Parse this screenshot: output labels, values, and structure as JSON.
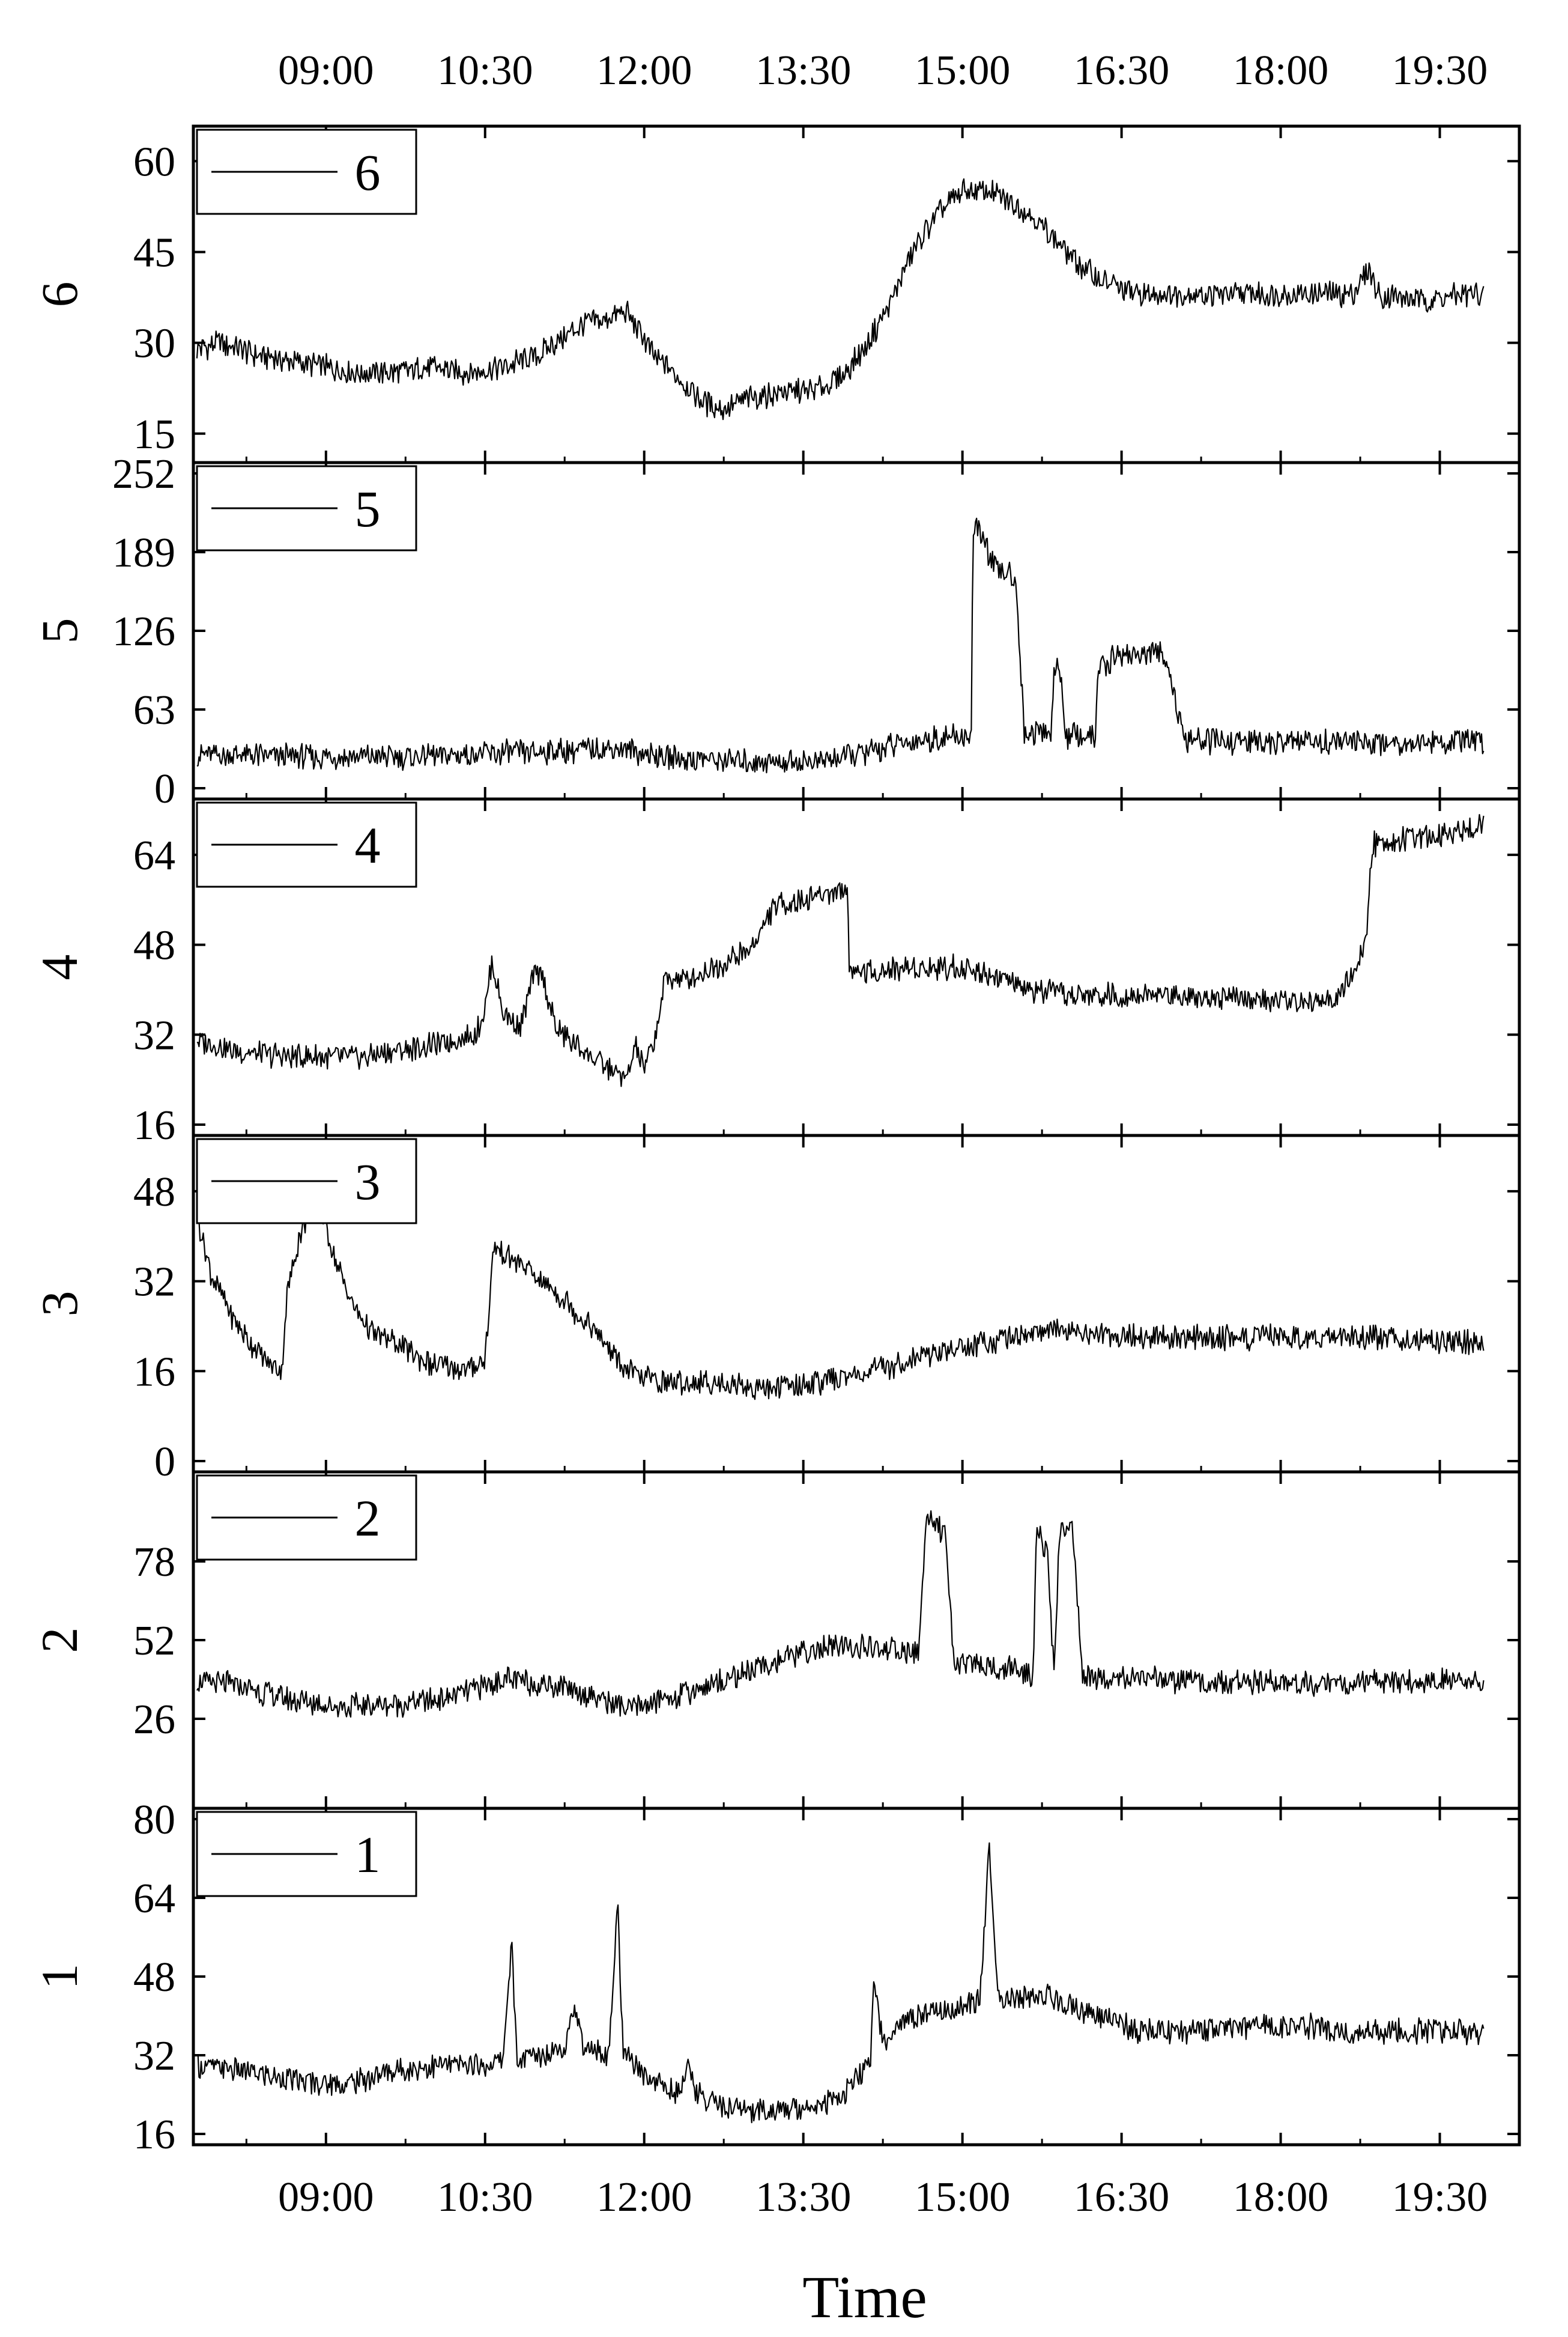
{
  "chart_data": {
    "type": "line",
    "xlabel": "Time",
    "x_ticks": [
      "09:00",
      "10:30",
      "12:00",
      "13:30",
      "15:00",
      "16:30",
      "18:00",
      "19:30"
    ],
    "x_tick_minutes": [
      540,
      630,
      720,
      810,
      900,
      990,
      1080,
      1170
    ],
    "xlim": [
      "07:45",
      "20:15"
    ],
    "xlim_minutes": [
      465,
      1215
    ],
    "series_x_range_minutes": [
      467,
      1195
    ],
    "grid": false,
    "panels": [
      {
        "name": "6",
        "ylabel": "6",
        "legend": "6",
        "ylim": [
          12,
          64
        ],
        "yticks": [
          15,
          30,
          45,
          60
        ],
        "points": [
          [
            467,
            29
          ],
          [
            480,
            30
          ],
          [
            500,
            28
          ],
          [
            520,
            27
          ],
          [
            540,
            26
          ],
          [
            560,
            25
          ],
          [
            580,
            25
          ],
          [
            600,
            26
          ],
          [
            620,
            25
          ],
          [
            640,
            26
          ],
          [
            660,
            28
          ],
          [
            675,
            31
          ],
          [
            685,
            33
          ],
          [
            700,
            34
          ],
          [
            710,
            35
          ],
          [
            715,
            33
          ],
          [
            725,
            28
          ],
          [
            740,
            24
          ],
          [
            755,
            20
          ],
          [
            765,
            19
          ],
          [
            780,
            21
          ],
          [
            800,
            22
          ],
          [
            815,
            22
          ],
          [
            830,
            24
          ],
          [
            845,
            29
          ],
          [
            860,
            37
          ],
          [
            870,
            44
          ],
          [
            885,
            51
          ],
          [
            900,
            55
          ],
          [
            915,
            55
          ],
          [
            935,
            52
          ],
          [
            950,
            48
          ],
          [
            965,
            43
          ],
          [
            980,
            40
          ],
          [
            1000,
            38
          ],
          [
            1030,
            38
          ],
          [
            1060,
            38
          ],
          [
            1090,
            38
          ],
          [
            1120,
            38
          ],
          [
            1130,
            42
          ],
          [
            1135,
            38
          ],
          [
            1160,
            37
          ],
          [
            1190,
            38
          ],
          [
            1195,
            38
          ]
        ]
      },
      {
        "name": "5",
        "ylabel": "5",
        "legend": "5",
        "ylim": [
          0,
          252
        ],
        "yticks": [
          0,
          63,
          126,
          189,
          252
        ],
        "points": [
          [
            467,
            27
          ],
          [
            500,
            26
          ],
          [
            540,
            25
          ],
          [
            580,
            25
          ],
          [
            620,
            27
          ],
          [
            660,
            29
          ],
          [
            690,
            31
          ],
          [
            705,
            32
          ],
          [
            720,
            28
          ],
          [
            740,
            24
          ],
          [
            770,
            22
          ],
          [
            800,
            21
          ],
          [
            820,
            22
          ],
          [
            840,
            27
          ],
          [
            860,
            34
          ],
          [
            880,
            39
          ],
          [
            900,
            41
          ],
          [
            905,
            42
          ],
          [
            906,
            210
          ],
          [
            912,
            200
          ],
          [
            918,
            175
          ],
          [
            930,
            170
          ],
          [
            935,
            45
          ],
          [
            950,
            45
          ],
          [
            952,
            95
          ],
          [
            956,
            90
          ],
          [
            958,
            42
          ],
          [
            975,
            40
          ],
          [
            977,
            100
          ],
          [
            982,
            95
          ],
          [
            985,
            107
          ],
          [
            1015,
            107
          ],
          [
            1022,
            60
          ],
          [
            1025,
            38
          ],
          [
            1050,
            37
          ],
          [
            1100,
            37
          ],
          [
            1150,
            37
          ],
          [
            1195,
            37
          ]
        ]
      },
      {
        "name": "4",
        "ylabel": "4",
        "legend": "4",
        "ylim": [
          16,
          72
        ],
        "yticks": [
          16,
          32,
          48,
          64
        ],
        "points": [
          [
            467,
            31
          ],
          [
            490,
            29
          ],
          [
            520,
            28
          ],
          [
            560,
            28
          ],
          [
            600,
            30
          ],
          [
            625,
            32
          ],
          [
            630,
            37
          ],
          [
            634,
            45
          ],
          [
            640,
            36
          ],
          [
            650,
            33
          ],
          [
            657,
            42
          ],
          [
            662,
            43
          ],
          [
            670,
            33
          ],
          [
            690,
            28
          ],
          [
            710,
            24
          ],
          [
            715,
            30
          ],
          [
            720,
            26
          ],
          [
            726,
            31
          ],
          [
            732,
            42
          ],
          [
            745,
            42
          ],
          [
            760,
            44
          ],
          [
            780,
            47
          ],
          [
            790,
            53
          ],
          [
            795,
            55
          ],
          [
            810,
            56
          ],
          [
            820,
            57
          ],
          [
            835,
            58
          ],
          [
            836,
            44
          ],
          [
            850,
            43
          ],
          [
            870,
            44
          ],
          [
            890,
            44
          ],
          [
            900,
            44
          ],
          [
            915,
            43
          ],
          [
            935,
            40
          ],
          [
            960,
            39
          ],
          [
            990,
            39
          ],
          [
            1030,
            39
          ],
          [
            1070,
            38
          ],
          [
            1110,
            38
          ],
          [
            1120,
            42
          ],
          [
            1128,
            48
          ],
          [
            1132,
            66
          ],
          [
            1160,
            67
          ],
          [
            1190,
            69
          ],
          [
            1195,
            70
          ]
        ]
      },
      {
        "name": "3",
        "ylabel": "3",
        "legend": "3",
        "ylim": [
          0,
          56
        ],
        "yticks": [
          0,
          16,
          32,
          48
        ],
        "points": [
          [
            467,
            44
          ],
          [
            475,
            33
          ],
          [
            490,
            24
          ],
          [
            505,
            18
          ],
          [
            515,
            16
          ],
          [
            518,
            30
          ],
          [
            525,
            40
          ],
          [
            535,
            48
          ],
          [
            545,
            36
          ],
          [
            555,
            28
          ],
          [
            565,
            23
          ],
          [
            580,
            21
          ],
          [
            600,
            17
          ],
          [
            620,
            16
          ],
          [
            630,
            18
          ],
          [
            635,
            38
          ],
          [
            650,
            35
          ],
          [
            670,
            30
          ],
          [
            690,
            24
          ],
          [
            710,
            16
          ],
          [
            730,
            14
          ],
          [
            760,
            14
          ],
          [
            790,
            13
          ],
          [
            820,
            14
          ],
          [
            850,
            16
          ],
          [
            880,
            19
          ],
          [
            910,
            21
          ],
          [
            940,
            23
          ],
          [
            970,
            23
          ],
          [
            1000,
            22
          ],
          [
            1050,
            22
          ],
          [
            1100,
            22
          ],
          [
            1150,
            22
          ],
          [
            1195,
            21
          ]
        ]
      },
      {
        "name": "2",
        "ylabel": "2",
        "legend": "2",
        "ylim": [
          0,
          104
        ],
        "yticks": [
          26,
          52,
          78
        ],
        "points": [
          [
            467,
            38
          ],
          [
            490,
            37
          ],
          [
            520,
            32
          ],
          [
            550,
            30
          ],
          [
            580,
            31
          ],
          [
            610,
            33
          ],
          [
            640,
            39
          ],
          [
            670,
            37
          ],
          [
            690,
            34
          ],
          [
            710,
            29
          ],
          [
            740,
            34
          ],
          [
            770,
            40
          ],
          [
            790,
            44
          ],
          [
            810,
            48
          ],
          [
            830,
            50
          ],
          [
            860,
            49
          ],
          [
            875,
            47
          ],
          [
            880,
            95
          ],
          [
            890,
            86
          ],
          [
            895,
            45
          ],
          [
            910,
            44
          ],
          [
            930,
            42
          ],
          [
            940,
            41
          ],
          [
            942,
            88
          ],
          [
            948,
            80
          ],
          [
            952,
            39
          ],
          [
            955,
            89
          ],
          [
            962,
            90
          ],
          [
            968,
            40
          ],
          [
            1000,
            39
          ],
          [
            1050,
            38
          ],
          [
            1100,
            38
          ],
          [
            1150,
            38
          ],
          [
            1195,
            39
          ]
        ]
      },
      {
        "name": "1",
        "ylabel": "1",
        "legend": "1",
        "ylim": [
          16,
          80
        ],
        "yticks": [
          16,
          32,
          48,
          64,
          80
        ],
        "points": [
          [
            467,
            30
          ],
          [
            490,
            29
          ],
          [
            520,
            27
          ],
          [
            550,
            26
          ],
          [
            580,
            29
          ],
          [
            610,
            30
          ],
          [
            630,
            30
          ],
          [
            640,
            31
          ],
          [
            645,
            55
          ],
          [
            648,
            31
          ],
          [
            660,
            32
          ],
          [
            675,
            34
          ],
          [
            680,
            42
          ],
          [
            685,
            34
          ],
          [
            700,
            32
          ],
          [
            705,
            63
          ],
          [
            708,
            32
          ],
          [
            720,
            28
          ],
          [
            730,
            26
          ],
          [
            740,
            24
          ],
          [
            745,
            30
          ],
          [
            750,
            24
          ],
          [
            770,
            21
          ],
          [
            800,
            21
          ],
          [
            830,
            23
          ],
          [
            840,
            27
          ],
          [
            848,
            30
          ],
          [
            850,
            49
          ],
          [
            855,
            34
          ],
          [
            870,
            40
          ],
          [
            890,
            41
          ],
          [
            910,
            43
          ],
          [
            915,
            75
          ],
          [
            920,
            43
          ],
          [
            950,
            44
          ],
          [
            975,
            40
          ],
          [
            1000,
            37
          ],
          [
            1030,
            37
          ],
          [
            1060,
            38
          ],
          [
            1090,
            38
          ],
          [
            1120,
            37
          ],
          [
            1150,
            37
          ],
          [
            1180,
            37
          ],
          [
            1195,
            36
          ]
        ]
      }
    ]
  }
}
